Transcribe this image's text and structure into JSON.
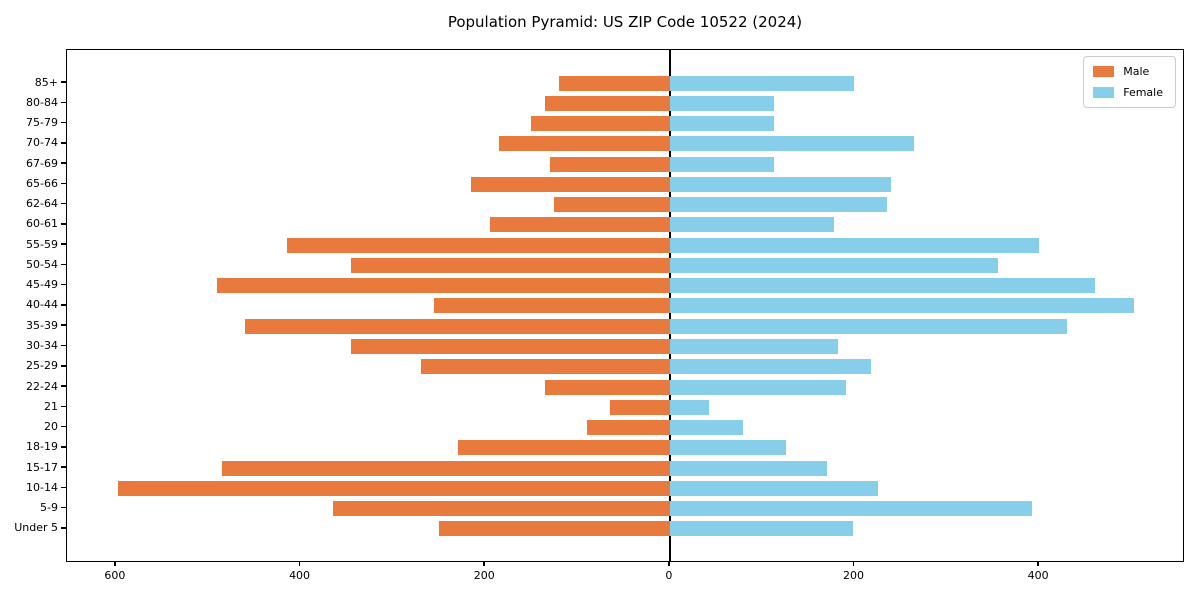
{
  "title": "Population Pyramid: US ZIP Code 10522 (2024)",
  "legend": {
    "male_label": "Male",
    "female_label": "Female"
  },
  "colors": {
    "male": "#e87a3d",
    "female": "#87ceeb",
    "axis": "#000000",
    "legend_border": "#cccccc"
  },
  "chart_data": {
    "type": "bar",
    "subtype": "population-pyramid-horizontal",
    "title": "Population Pyramid: US ZIP Code 10522 (2024)",
    "xlabel": "",
    "ylabel": "",
    "grid": false,
    "legend_position": "upper right",
    "xlim": [
      -653,
      558
    ],
    "categories": [
      "85+",
      "80-84",
      "75-79",
      "70-74",
      "67-69",
      "65-66",
      "62-64",
      "60-61",
      "55-59",
      "50-54",
      "45-49",
      "40-44",
      "35-39",
      "30-34",
      "25-29",
      "22-24",
      "21",
      "20",
      "18-19",
      "15-17",
      "10-14",
      "5-9",
      "Under 5"
    ],
    "series": [
      {
        "name": "Male",
        "side": "left",
        "color": "#e87a3d",
        "values": [
          120,
          135,
          150,
          185,
          130,
          215,
          125,
          195,
          415,
          345,
          490,
          255,
          460,
          345,
          270,
          135,
          65,
          90,
          230,
          485,
          598,
          365,
          250
        ]
      },
      {
        "name": "Female",
        "side": "right",
        "color": "#87ceeb",
        "values": [
          200,
          113,
          113,
          265,
          113,
          240,
          235,
          178,
          400,
          355,
          460,
          503,
          430,
          182,
          218,
          191,
          42,
          79,
          126,
          170,
          225,
          392,
          198
        ]
      }
    ],
    "x_ticks": [
      {
        "label": "600",
        "value": -600
      },
      {
        "label": "400",
        "value": -400
      },
      {
        "label": "200",
        "value": -200
      },
      {
        "label": "0",
        "value": 0
      },
      {
        "label": "200",
        "value": 200
      },
      {
        "label": "400",
        "value": 400
      }
    ]
  }
}
